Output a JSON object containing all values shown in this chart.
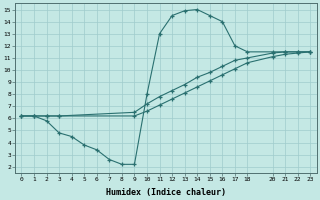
{
  "xlabel": "Humidex (Indice chaleur)",
  "ylabel": "",
  "xlim": [
    -0.5,
    23.5
  ],
  "ylim": [
    1.5,
    15.5
  ],
  "xticks": [
    0,
    1,
    2,
    3,
    4,
    5,
    6,
    7,
    8,
    9,
    10,
    11,
    12,
    13,
    14,
    15,
    16,
    17,
    18,
    20,
    21,
    22,
    23
  ],
  "yticks": [
    2,
    3,
    4,
    5,
    6,
    7,
    8,
    9,
    10,
    11,
    12,
    13,
    14,
    15
  ],
  "bg_color": "#c4e8e4",
  "grid_color": "#a0cccc",
  "line_color": "#2a7070",
  "line1_x": [
    0,
    1,
    2,
    3,
    4,
    5,
    6,
    7,
    8,
    9,
    10,
    11,
    12,
    13,
    14,
    15,
    16,
    17,
    18,
    20,
    21,
    22,
    23
  ],
  "line1_y": [
    6.2,
    6.2,
    5.8,
    4.8,
    4.5,
    3.8,
    3.4,
    2.6,
    2.2,
    2.2,
    8.0,
    13.0,
    14.5,
    14.9,
    15.0,
    14.5,
    14.0,
    12.0,
    11.5,
    11.5,
    11.5,
    11.5,
    11.5
  ],
  "line2_x": [
    0,
    1,
    2,
    3,
    9,
    10,
    11,
    12,
    13,
    14,
    15,
    16,
    17,
    18,
    20,
    21,
    22,
    23
  ],
  "line2_y": [
    6.2,
    6.2,
    6.2,
    6.2,
    6.5,
    7.2,
    7.8,
    8.3,
    8.8,
    9.4,
    9.8,
    10.3,
    10.8,
    11.0,
    11.4,
    11.5,
    11.5,
    11.5
  ],
  "line3_x": [
    0,
    1,
    2,
    3,
    9,
    10,
    11,
    12,
    13,
    14,
    15,
    16,
    17,
    18,
    20,
    21,
    22,
    23
  ],
  "line3_y": [
    6.2,
    6.2,
    6.2,
    6.2,
    6.2,
    6.6,
    7.1,
    7.6,
    8.1,
    8.6,
    9.1,
    9.6,
    10.1,
    10.6,
    11.1,
    11.3,
    11.4,
    11.5
  ]
}
